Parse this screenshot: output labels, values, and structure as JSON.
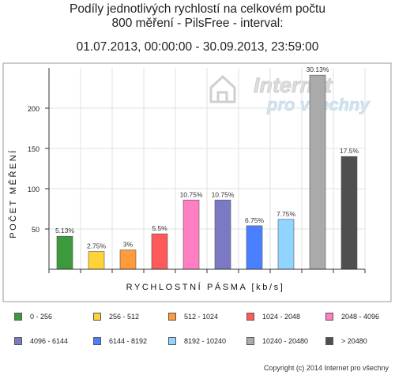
{
  "titles": {
    "line1": "Podíly jednotlivých rychlostí na celkovém počtu",
    "line2": "800 měření - PilsFree - interval:",
    "line3": "01.07.2013, 00:00:00 - 30.09.2013, 23:59:00"
  },
  "watermark": {
    "line1": "Internet",
    "line2": "pro všechny"
  },
  "copyright": "Copyright (c) 2014 Internet pro všechny",
  "chart_data": {
    "type": "bar",
    "xlabel": "RYCHLOSTNÍ PÁSMA [kb/s]",
    "ylabel": "POČET MĚŘENÍ",
    "ylim": [
      0,
      250
    ],
    "yticks": [
      50,
      100,
      150,
      200
    ],
    "grid": true,
    "categories": [
      "0 - 256",
      "256 - 512",
      "512 - 1024",
      "1024 - 2048",
      "2048 - 4096",
      "4096 - 6144",
      "6144 - 8192",
      "8192 - 10240",
      "10240 - 20480",
      "> 20480"
    ],
    "values": [
      41,
      22,
      24,
      44,
      86,
      86,
      54,
      62,
      241,
      140
    ],
    "labels": [
      "5.13%",
      "2.75%",
      "3%",
      "5.5%",
      "10.75%",
      "10.75%",
      "6.75%",
      "7.75%",
      "30.13%",
      "17.5%"
    ],
    "colors": [
      "#3c9a3c",
      "#ffd338",
      "#ff9b3a",
      "#ff5a5a",
      "#ff7fc2",
      "#7b79c4",
      "#4a80ff",
      "#90d4ff",
      "#aaaaaa",
      "#4f4f4f"
    ],
    "legend": {
      "position": "bottom",
      "columns": 5,
      "entries": [
        "0 - 256",
        "256 - 512",
        "512 - 1024",
        "1024 - 2048",
        "2048 - 4096",
        "4096 - 6144",
        "6144 - 8192",
        "8192 - 10240",
        "10240 - 20480",
        "> 20480"
      ]
    }
  }
}
